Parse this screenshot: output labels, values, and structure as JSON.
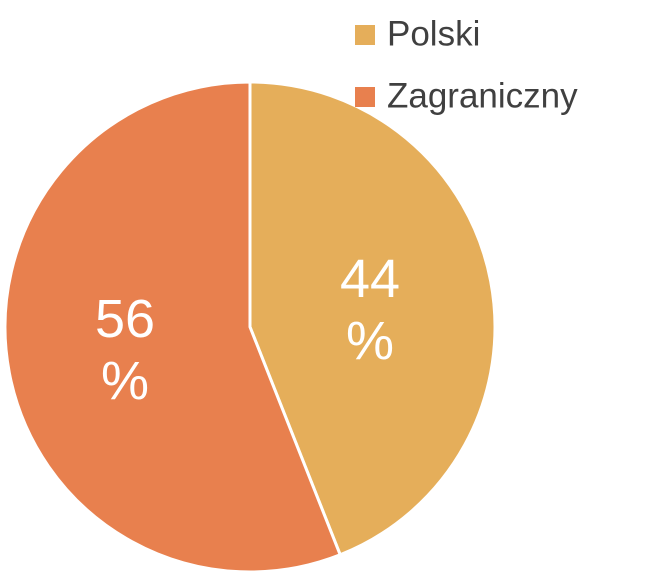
{
  "chart_data": {
    "type": "pie",
    "categories": [
      "Polski",
      "Zagraniczny"
    ],
    "values": [
      44,
      56
    ],
    "value_labels": [
      "44 %",
      "56 %"
    ],
    "colors": [
      "#e5ae5a",
      "#e8804e"
    ],
    "legend": "top-right"
  }
}
